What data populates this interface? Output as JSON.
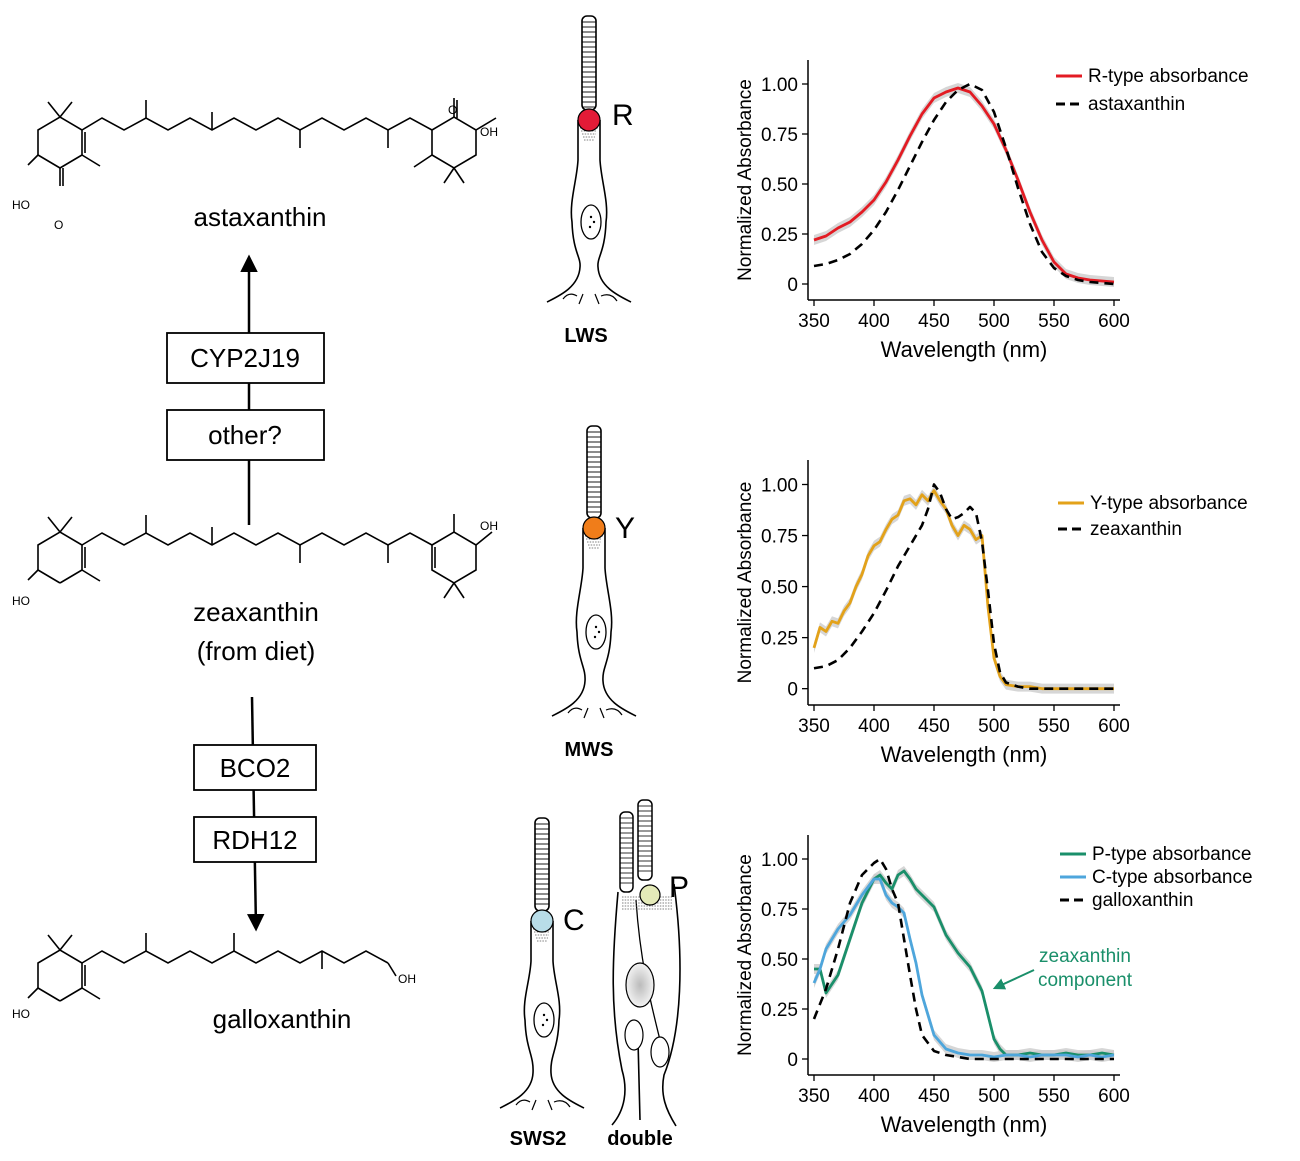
{
  "pathway": {
    "astaxanthin": "astaxanthin",
    "enzyme_1": "CYP2J19",
    "enzyme_2": "other?",
    "zeaxanthin": "zeaxanthin",
    "zeaxanthin_source": "(from diet)",
    "enzyme_3": "BCO2",
    "enzyme_4": "RDH12",
    "galloxanthin": "galloxanthin",
    "atoms": {
      "oh": "OH",
      "ho": "HO",
      "o": "O"
    }
  },
  "cones": [
    {
      "type_label": "LWS",
      "oil_droplet_letter": "R",
      "droplet_color": "#e31b37"
    },
    {
      "type_label": "MWS",
      "oil_droplet_letter": "Y",
      "droplet_color": "#f07d1a"
    },
    {
      "type_label": "SWS2",
      "oil_droplet_letter": "C",
      "droplet_color": "#b8dde8"
    },
    {
      "type_label": "double",
      "oil_droplet_letter": "P",
      "droplet_color": "#e4eab8"
    }
  ],
  "chart_data": [
    {
      "type": "line",
      "xlabel": "Wavelength (nm)",
      "ylabel": "Normalized Absorbance",
      "xlim": [
        345,
        605
      ],
      "ylim": [
        -0.08,
        1.12
      ],
      "xticks": [
        350,
        400,
        450,
        500,
        550,
        600
      ],
      "yticks": [
        0,
        0.25,
        0.5,
        0.75,
        1.0
      ],
      "ytick_labels": [
        "0",
        "0.25",
        "0.50",
        "0.75",
        "1.00"
      ],
      "legend_position": "top-right",
      "series": [
        {
          "name": "R-type absorbance",
          "color": "#e31b23",
          "style": "solid",
          "band": true,
          "x": [
            350,
            360,
            370,
            380,
            390,
            400,
            410,
            420,
            430,
            440,
            450,
            460,
            470,
            480,
            490,
            500,
            510,
            520,
            530,
            540,
            550,
            560,
            570,
            580,
            590,
            600
          ],
          "y": [
            0.22,
            0.24,
            0.28,
            0.31,
            0.36,
            0.42,
            0.51,
            0.62,
            0.74,
            0.85,
            0.93,
            0.96,
            0.98,
            0.96,
            0.89,
            0.8,
            0.67,
            0.52,
            0.36,
            0.22,
            0.11,
            0.05,
            0.03,
            0.02,
            0.015,
            0.01
          ]
        },
        {
          "name": "astaxanthin",
          "color": "#000000",
          "style": "dashed",
          "band": false,
          "x": [
            350,
            360,
            370,
            380,
            390,
            400,
            410,
            420,
            430,
            440,
            450,
            460,
            470,
            480,
            490,
            500,
            510,
            520,
            530,
            540,
            550,
            560,
            570,
            580,
            590,
            600
          ],
          "y": [
            0.09,
            0.1,
            0.12,
            0.15,
            0.2,
            0.27,
            0.36,
            0.47,
            0.59,
            0.71,
            0.82,
            0.91,
            0.97,
            1.0,
            0.97,
            0.86,
            0.68,
            0.48,
            0.3,
            0.16,
            0.08,
            0.04,
            0.02,
            0.01,
            0.005,
            0.0
          ]
        }
      ]
    },
    {
      "type": "line",
      "xlabel": "Wavelength (nm)",
      "ylabel": "Normalized Absorbance",
      "xlim": [
        345,
        605
      ],
      "ylim": [
        -0.08,
        1.12
      ],
      "xticks": [
        350,
        400,
        450,
        500,
        550,
        600
      ],
      "yticks": [
        0,
        0.25,
        0.5,
        0.75,
        1.0
      ],
      "ytick_labels": [
        "0",
        "0.25",
        "0.50",
        "0.75",
        "1.00"
      ],
      "legend_position": "top-right",
      "series": [
        {
          "name": "Y-type absorbance",
          "color": "#e3a21a",
          "style": "solid",
          "band": true,
          "x": [
            350,
            355,
            360,
            365,
            370,
            375,
            380,
            385,
            390,
            395,
            400,
            405,
            410,
            415,
            420,
            425,
            430,
            435,
            440,
            445,
            450,
            455,
            460,
            465,
            470,
            475,
            480,
            485,
            490,
            495,
            500,
            505,
            510,
            520,
            530,
            540,
            550,
            560,
            570,
            580,
            590,
            600
          ],
          "y": [
            0.2,
            0.3,
            0.28,
            0.33,
            0.32,
            0.38,
            0.42,
            0.5,
            0.56,
            0.65,
            0.7,
            0.72,
            0.78,
            0.83,
            0.85,
            0.92,
            0.93,
            0.9,
            0.95,
            0.92,
            0.97,
            0.92,
            0.88,
            0.8,
            0.75,
            0.8,
            0.78,
            0.73,
            0.75,
            0.4,
            0.15,
            0.06,
            0.02,
            0.01,
            0.01,
            0.0,
            0.0,
            0.0,
            0.0,
            0.0,
            0.0,
            0.0
          ]
        },
        {
          "name": "zeaxanthin",
          "color": "#000000",
          "style": "dashed",
          "band": false,
          "x": [
            350,
            360,
            370,
            380,
            390,
            400,
            410,
            420,
            430,
            440,
            445,
            450,
            455,
            460,
            465,
            470,
            475,
            480,
            485,
            490,
            495,
            500,
            505,
            510,
            520,
            530,
            540,
            550,
            560,
            570,
            580,
            590,
            600
          ],
          "y": [
            0.1,
            0.11,
            0.14,
            0.2,
            0.28,
            0.37,
            0.48,
            0.6,
            0.7,
            0.8,
            0.88,
            1.0,
            0.96,
            0.88,
            0.83,
            0.84,
            0.86,
            0.89,
            0.86,
            0.72,
            0.48,
            0.22,
            0.08,
            0.03,
            0.01,
            0.0,
            0.0,
            0.0,
            0.0,
            0.0,
            0.0,
            0.0,
            0.0
          ]
        }
      ]
    },
    {
      "type": "line",
      "xlabel": "Wavelength (nm)",
      "ylabel": "Normalized Absorbance",
      "xlim": [
        345,
        605
      ],
      "ylim": [
        -0.08,
        1.12
      ],
      "xticks": [
        350,
        400,
        450,
        500,
        550,
        600
      ],
      "yticks": [
        0,
        0.25,
        0.5,
        0.75,
        1.0
      ],
      "ytick_labels": [
        "0",
        "0.25",
        "0.50",
        "0.75",
        "1.00"
      ],
      "legend_position": "top-right",
      "annotation": {
        "line1": "zeaxanthin",
        "line2": "component",
        "color": "#1a8f6a"
      },
      "series": [
        {
          "name": "P-type absorbance",
          "color": "#1a8f6a",
          "style": "solid",
          "band": true,
          "x": [
            350,
            355,
            360,
            370,
            380,
            390,
            400,
            405,
            410,
            415,
            420,
            425,
            430,
            435,
            440,
            450,
            460,
            470,
            480,
            490,
            495,
            500,
            505,
            510,
            520,
            530,
            540,
            550,
            560,
            570,
            580,
            590,
            600
          ],
          "y": [
            0.45,
            0.45,
            0.33,
            0.42,
            0.6,
            0.78,
            0.9,
            0.92,
            0.88,
            0.85,
            0.92,
            0.94,
            0.9,
            0.85,
            0.82,
            0.76,
            0.62,
            0.53,
            0.46,
            0.34,
            0.22,
            0.1,
            0.05,
            0.02,
            0.02,
            0.03,
            0.02,
            0.02,
            0.03,
            0.02,
            0.02,
            0.03,
            0.02
          ]
        },
        {
          "name": "C-type absorbance",
          "color": "#4ea6dc",
          "style": "solid",
          "band": true,
          "x": [
            350,
            355,
            360,
            370,
            380,
            390,
            400,
            405,
            410,
            415,
            420,
            425,
            430,
            435,
            440,
            450,
            460,
            470,
            480,
            490,
            500,
            510,
            520,
            530,
            540,
            550,
            560,
            570,
            580,
            590,
            600
          ],
          "y": [
            0.38,
            0.45,
            0.55,
            0.65,
            0.72,
            0.82,
            0.9,
            0.9,
            0.82,
            0.78,
            0.76,
            0.73,
            0.6,
            0.48,
            0.32,
            0.12,
            0.05,
            0.03,
            0.02,
            0.02,
            0.01,
            0.02,
            0.02,
            0.01,
            0.02,
            0.02,
            0.02,
            0.01,
            0.02,
            0.01,
            0.02
          ]
        },
        {
          "name": "galloxanthin",
          "color": "#000000",
          "style": "dashed",
          "band": false,
          "x": [
            350,
            360,
            370,
            380,
            390,
            400,
            405,
            410,
            415,
            420,
            425,
            430,
            435,
            440,
            450,
            460,
            470,
            480,
            490,
            500,
            510,
            520,
            530,
            540,
            550,
            560,
            570,
            580,
            590,
            600
          ],
          "y": [
            0.2,
            0.35,
            0.55,
            0.78,
            0.92,
            0.98,
            1.0,
            0.95,
            0.85,
            0.78,
            0.6,
            0.42,
            0.25,
            0.12,
            0.04,
            0.02,
            0.01,
            0.0,
            0.0,
            0.0,
            0.0,
            0.0,
            0.0,
            0.0,
            0.0,
            0.0,
            0.0,
            0.0,
            0.0,
            0.0
          ]
        }
      ]
    }
  ]
}
